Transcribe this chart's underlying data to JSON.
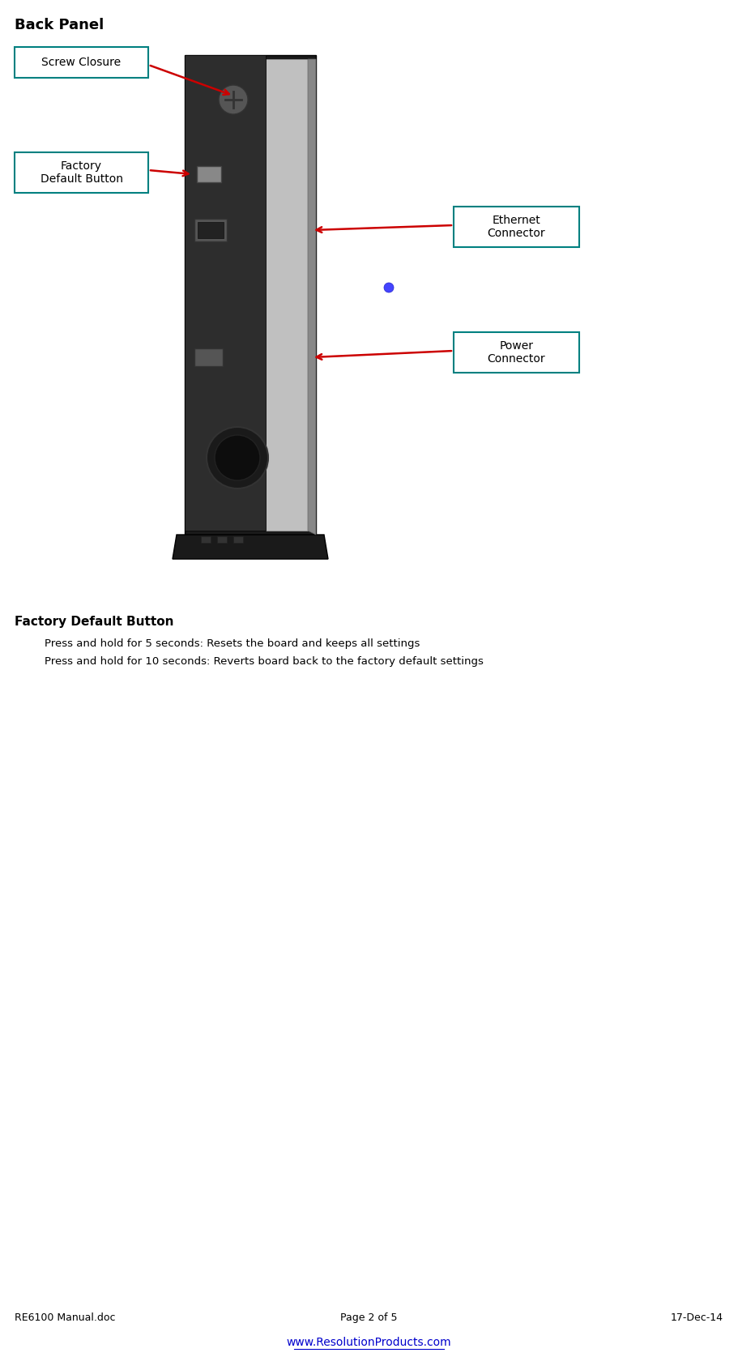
{
  "title": "Back Panel",
  "title_fontsize": 13,
  "title_bold": true,
  "bg_color": "#ffffff",
  "teal_color": "#008080",
  "red_color": "#cc0000",
  "black_color": "#000000",
  "blue_color": "#0000cc",
  "labels": {
    "screw_closure": "Screw Closure",
    "factory_default": "Factory\nDefault Button",
    "ethernet": "Ethernet\nConnector",
    "power": "Power\nConnector"
  },
  "section_title": "Factory Default Button",
  "line1": "Press and hold for 5 seconds: Resets the board and keeps all settings",
  "line2": "Press and hold for 10 seconds: Reverts board back to the factory default settings",
  "footer_left": "RE6100 Manual.doc",
  "footer_center": "Page 2 of 5",
  "footer_right": "17-Dec-14",
  "footer_url": "www.ResolutionProducts.com",
  "label_fontsize": 10,
  "section_fontsize": 11,
  "body_fontsize": 9.5,
  "footer_fontsize": 9
}
